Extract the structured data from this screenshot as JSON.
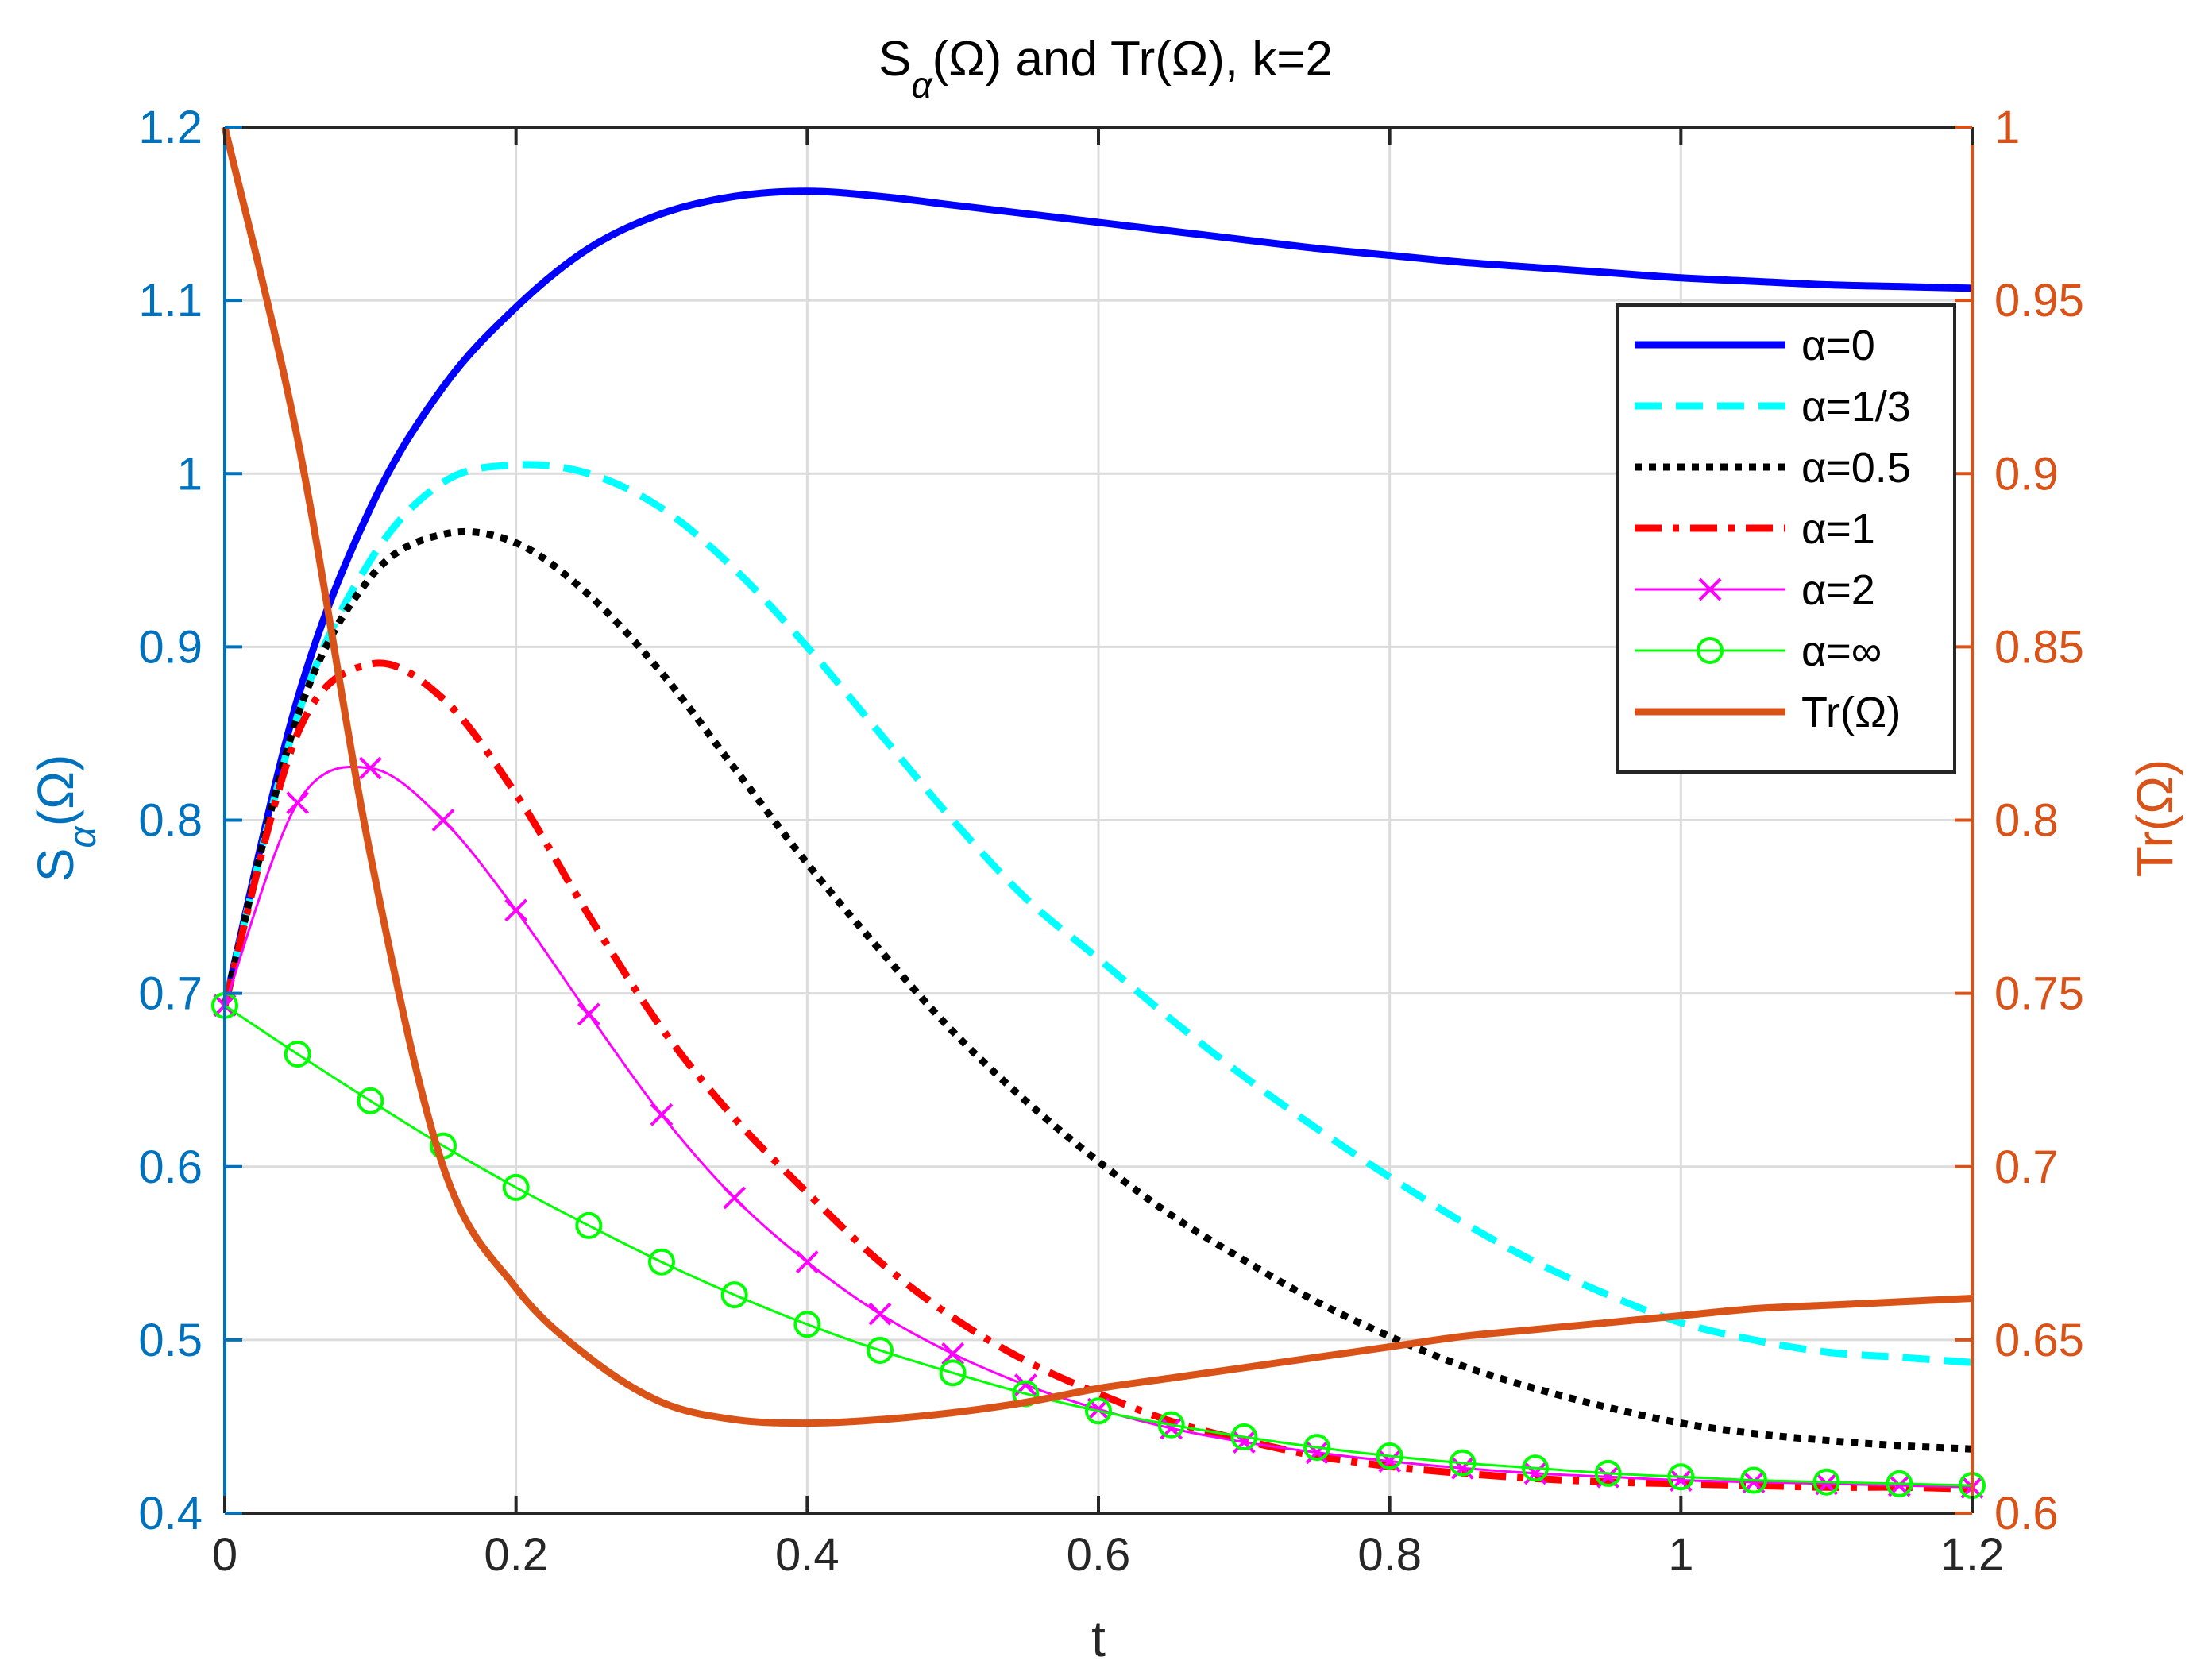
{
  "chart_data": {
    "type": "line",
    "title": "S_α(Ω) and Tr(Ω), k=2",
    "title_parts": {
      "main": "S",
      "sub": "α",
      "rest": "(Ω) and Tr(Ω), k=2"
    },
    "xlabel": "t",
    "ylabel_left": "S_α(Ω)",
    "ylabel_left_parts": {
      "main": "S",
      "sub": "α",
      "rest": "(Ω)"
    },
    "ylabel_right": "Tr(Ω)",
    "xlim": [
      0,
      1.2
    ],
    "ylim_left": [
      0.4,
      1.2
    ],
    "ylim_right": [
      0.6,
      1.0
    ],
    "grid": true,
    "legend_position": "upper-right",
    "x_ticks": [
      "0",
      "0.2",
      "0.4",
      "0.6",
      "0.8",
      "1",
      "1.2"
    ],
    "y_ticks_left": [
      "0.4",
      "0.5",
      "0.6",
      "0.7",
      "0.8",
      "0.9",
      "1",
      "1.1",
      "1.2"
    ],
    "y_ticks_right": [
      "0.6",
      "0.65",
      "0.7",
      "0.75",
      "0.8",
      "0.85",
      "0.9",
      "0.95",
      "1"
    ],
    "colors": {
      "left_axis": "#0072BD",
      "right_axis": "#D95319",
      "grid": "#dcdcdc",
      "text": "#262626"
    },
    "x": [
      0,
      0.05,
      0.1,
      0.15,
      0.2,
      0.25,
      0.3,
      0.35,
      0.4,
      0.45,
      0.5,
      0.55,
      0.6,
      0.65,
      0.7,
      0.75,
      0.8,
      0.85,
      0.9,
      0.95,
      1.0,
      1.05,
      1.1,
      1.15,
      1.2
    ],
    "series": [
      {
        "name": "α=0",
        "axis": "left",
        "color": "#0000FF",
        "style": "solid",
        "width": 9,
        "marker": "none",
        "values": [
          0.693,
          0.87,
          0.98,
          1.05,
          1.096,
          1.13,
          1.15,
          1.16,
          1.163,
          1.16,
          1.155,
          1.15,
          1.145,
          1.14,
          1.135,
          1.13,
          1.126,
          1.122,
          1.119,
          1.116,
          1.113,
          1.111,
          1.109,
          1.108,
          1.107
        ]
      },
      {
        "name": "α=1/3",
        "axis": "left",
        "color": "#00FFFF",
        "style": "dashed",
        "width": 9,
        "marker": "none",
        "values": [
          0.693,
          0.86,
          0.95,
          0.995,
          1.005,
          1.0,
          0.98,
          0.945,
          0.9,
          0.85,
          0.8,
          0.755,
          0.72,
          0.685,
          0.652,
          0.622,
          0.594,
          0.568,
          0.545,
          0.526,
          0.51,
          0.5,
          0.493,
          0.49,
          0.487
        ]
      },
      {
        "name": "α=0.5",
        "axis": "left",
        "color": "#000000",
        "style": "dotted",
        "width": 9,
        "marker": "none",
        "values": [
          0.693,
          0.86,
          0.94,
          0.965,
          0.96,
          0.93,
          0.885,
          0.83,
          0.775,
          0.725,
          0.678,
          0.638,
          0.603,
          0.572,
          0.546,
          0.522,
          0.502,
          0.485,
          0.472,
          0.461,
          0.452,
          0.446,
          0.442,
          0.439,
          0.437
        ]
      },
      {
        "name": "α=1",
        "axis": "left",
        "color": "#FF0000",
        "style": "dashdot",
        "width": 9,
        "marker": "none",
        "values": [
          0.693,
          0.85,
          0.89,
          0.87,
          0.815,
          0.745,
          0.68,
          0.628,
          0.585,
          0.545,
          0.513,
          0.488,
          0.469,
          0.453,
          0.442,
          0.433,
          0.427,
          0.423,
          0.42,
          0.418,
          0.417,
          0.416,
          0.415,
          0.415,
          0.414
        ]
      },
      {
        "name": "α=2",
        "axis": "left",
        "color": "#FF00FF",
        "style": "solid",
        "width": 3,
        "marker": "x",
        "values": [
          0.693,
          0.81,
          0.83,
          0.8,
          0.748,
          0.688,
          0.63,
          0.582,
          0.545,
          0.515,
          0.492,
          0.474,
          0.46,
          0.449,
          0.441,
          0.435,
          0.43,
          0.426,
          0.423,
          0.421,
          0.419,
          0.418,
          0.417,
          0.416,
          0.415
        ]
      },
      {
        "name": "α=∞",
        "axis": "left",
        "color": "#00FF00",
        "style": "solid",
        "width": 3,
        "marker": "o",
        "values": [
          0.693,
          0.665,
          0.638,
          0.612,
          0.588,
          0.566,
          0.545,
          0.526,
          0.509,
          0.494,
          0.481,
          0.469,
          0.459,
          0.451,
          0.444,
          0.438,
          0.433,
          0.429,
          0.426,
          0.423,
          0.421,
          0.419,
          0.418,
          0.417,
          0.416
        ]
      },
      {
        "name": "Tr(Ω)",
        "axis": "right",
        "color": "#D95319",
        "style": "solid",
        "width": 9,
        "marker": "none",
        "values": [
          1.0,
          0.91,
          0.79,
          0.7,
          0.665,
          0.645,
          0.632,
          0.627,
          0.626,
          0.627,
          0.629,
          0.632,
          0.636,
          0.639,
          0.642,
          0.645,
          0.648,
          0.651,
          0.653,
          0.655,
          0.657,
          0.659,
          0.66,
          0.661,
          0.662
        ]
      }
    ]
  }
}
